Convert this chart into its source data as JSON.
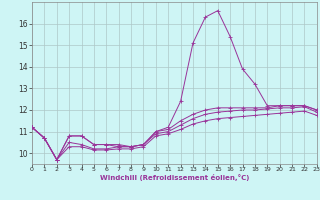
{
  "title": "",
  "xlabel": "Windchill (Refroidissement éolien,°C)",
  "ylabel": "",
  "bg_color": "#cef5f5",
  "grid_color": "#aec8c8",
  "line_color": "#993399",
  "xlim": [
    0,
    23
  ],
  "ylim": [
    9.5,
    17.0
  ],
  "xticks": [
    0,
    1,
    2,
    3,
    4,
    5,
    6,
    7,
    8,
    9,
    10,
    11,
    12,
    13,
    14,
    15,
    16,
    17,
    18,
    19,
    20,
    21,
    22,
    23
  ],
  "yticks": [
    10,
    11,
    12,
    13,
    14,
    15,
    16
  ],
  "lines": [
    [
      11.2,
      10.7,
      9.7,
      10.8,
      10.8,
      10.4,
      10.4,
      10.4,
      10.3,
      10.4,
      11.0,
      11.2,
      12.4,
      15.1,
      16.3,
      16.6,
      15.4,
      13.9,
      13.2,
      12.2,
      12.2,
      12.2,
      12.2,
      12.0
    ],
    [
      11.2,
      10.7,
      9.7,
      10.8,
      10.8,
      10.4,
      10.4,
      10.3,
      10.3,
      10.4,
      11.0,
      11.1,
      11.5,
      11.8,
      12.0,
      12.1,
      12.1,
      12.1,
      12.1,
      12.1,
      12.2,
      12.2,
      12.2,
      12.0
    ],
    [
      11.2,
      10.7,
      9.7,
      10.5,
      10.4,
      10.2,
      10.2,
      10.3,
      10.3,
      10.4,
      10.9,
      11.0,
      11.3,
      11.6,
      11.8,
      11.9,
      11.95,
      12.0,
      12.0,
      12.05,
      12.1,
      12.1,
      12.15,
      11.9
    ],
    [
      11.2,
      10.7,
      9.7,
      10.3,
      10.3,
      10.15,
      10.15,
      10.2,
      10.2,
      10.3,
      10.8,
      10.9,
      11.1,
      11.35,
      11.5,
      11.6,
      11.65,
      11.7,
      11.75,
      11.8,
      11.85,
      11.9,
      11.95,
      11.75
    ]
  ]
}
